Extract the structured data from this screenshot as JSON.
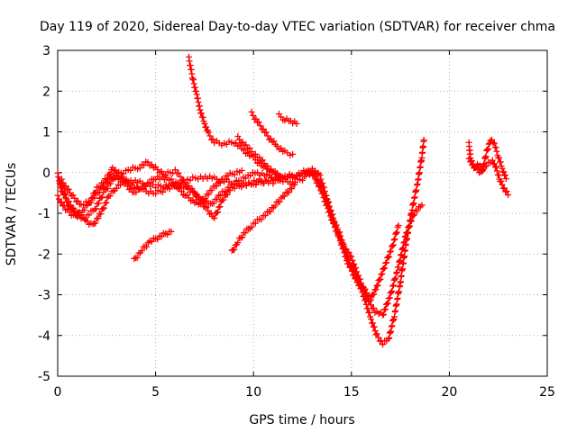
{
  "chart_data": {
    "type": "scatter",
    "title": "Day 119 of 2020, Sidereal Day-to-day VTEC variation (SDTVAR) for receiver chma",
    "xlabel": "GPS time / hours",
    "ylabel": "SDTVAR / TECUs",
    "xlim": [
      0,
      25
    ],
    "ylim": [
      -5,
      3
    ],
    "xticks": [
      0,
      5,
      10,
      15,
      20,
      25
    ],
    "yticks": [
      -5,
      -4,
      -3,
      -2,
      -1,
      0,
      1,
      2,
      3
    ],
    "grid": true,
    "legend": "none",
    "marker": "+",
    "color": "#ff0000",
    "traces": [
      {
        "points": [
          [
            0.0,
            -0.05
          ],
          [
            0.3,
            -0.5
          ],
          [
            0.6,
            -0.85
          ],
          [
            1.0,
            -1.05
          ],
          [
            1.5,
            -1.2
          ],
          [
            1.8,
            -1.3
          ],
          [
            2.2,
            -1.0
          ],
          [
            2.6,
            -0.6
          ],
          [
            3.0,
            -0.35
          ],
          [
            3.5,
            -0.2
          ],
          [
            4.2,
            -0.25
          ],
          [
            5.0,
            -0.35
          ],
          [
            5.8,
            -0.3
          ],
          [
            6.5,
            -0.2
          ],
          [
            7.3,
            -0.1
          ],
          [
            8.0,
            -0.15
          ],
          [
            9.0,
            -0.25
          ],
          [
            10.0,
            -0.3
          ],
          [
            11.0,
            -0.15
          ],
          [
            12.0,
            -0.1
          ],
          [
            12.6,
            -0.05
          ],
          [
            13.0,
            0.0
          ],
          [
            13.3,
            -0.2
          ],
          [
            13.7,
            -0.6
          ],
          [
            14.0,
            -1.1
          ],
          [
            14.4,
            -1.5
          ],
          [
            14.8,
            -2.1
          ],
          [
            15.2,
            -2.5
          ],
          [
            15.6,
            -3.0
          ],
          [
            16.0,
            -3.6
          ],
          [
            16.3,
            -4.0
          ],
          [
            16.6,
            -4.2
          ],
          [
            16.9,
            -4.1
          ],
          [
            17.2,
            -3.5
          ],
          [
            17.5,
            -2.7
          ],
          [
            17.8,
            -1.7
          ],
          [
            18.1,
            -0.9
          ],
          [
            18.4,
            -0.2
          ],
          [
            18.6,
            0.4
          ],
          [
            18.7,
            0.8
          ]
        ]
      },
      {
        "points": [
          [
            0.0,
            -0.6
          ],
          [
            0.4,
            -0.9
          ],
          [
            0.8,
            -1.05
          ],
          [
            1.2,
            -1.0
          ],
          [
            1.6,
            -0.75
          ],
          [
            2.0,
            -0.4
          ],
          [
            2.5,
            -0.15
          ],
          [
            2.8,
            0.1
          ],
          [
            3.2,
            -0.1
          ],
          [
            3.8,
            -0.3
          ],
          [
            4.4,
            -0.45
          ],
          [
            5.0,
            -0.5
          ],
          [
            5.6,
            -0.4
          ],
          [
            6.2,
            -0.3
          ],
          [
            7.0,
            -0.5
          ],
          [
            7.6,
            -0.9
          ],
          [
            8.0,
            -1.1
          ],
          [
            8.4,
            -0.7
          ],
          [
            8.8,
            -0.4
          ],
          [
            9.5,
            -0.3
          ],
          [
            10.3,
            -0.2
          ],
          [
            11.0,
            -0.25
          ],
          [
            11.6,
            -0.1
          ],
          [
            12.2,
            -0.05
          ],
          [
            12.8,
            0.05
          ],
          [
            13.1,
            -0.1
          ],
          [
            13.5,
            -0.5
          ],
          [
            13.8,
            -0.9
          ],
          [
            14.2,
            -1.4
          ],
          [
            14.6,
            -1.8
          ],
          [
            15.0,
            -2.1
          ],
          [
            15.4,
            -2.6
          ],
          [
            15.8,
            -3.1
          ],
          [
            16.2,
            -3.4
          ],
          [
            16.6,
            -3.5
          ],
          [
            17.0,
            -3.0
          ],
          [
            17.4,
            -2.3
          ],
          [
            17.8,
            -1.5
          ],
          [
            18.2,
            -1.0
          ],
          [
            18.6,
            -0.8
          ]
        ]
      },
      {
        "points": [
          [
            0.1,
            -0.3
          ],
          [
            0.5,
            -0.7
          ],
          [
            0.9,
            -0.95
          ],
          [
            1.4,
            -1.1
          ],
          [
            1.9,
            -0.9
          ],
          [
            2.4,
            -0.45
          ],
          [
            3.0,
            -0.05
          ],
          [
            3.6,
            0.05
          ],
          [
            4.2,
            0.15
          ],
          [
            4.6,
            0.25
          ],
          [
            5.0,
            0.1
          ],
          [
            5.5,
            -0.05
          ],
          [
            6.0,
            0.05
          ],
          [
            6.6,
            -0.3
          ],
          [
            7.2,
            -0.6
          ],
          [
            7.8,
            -0.8
          ],
          [
            8.3,
            -0.55
          ],
          [
            8.9,
            -0.3
          ],
          [
            9.6,
            -0.1
          ],
          [
            10.2,
            0.0
          ],
          [
            10.8,
            -0.1
          ],
          [
            11.5,
            -0.2
          ],
          [
            12.0,
            -0.25
          ],
          [
            12.5,
            -0.15
          ],
          [
            13.0,
            0.1
          ],
          [
            13.4,
            -0.1
          ],
          [
            13.8,
            -0.7
          ],
          [
            14.3,
            -1.5
          ],
          [
            14.8,
            -2.2
          ],
          [
            15.3,
            -2.7
          ],
          [
            15.7,
            -2.9
          ],
          [
            16.0,
            -3.1
          ],
          [
            16.3,
            -2.8
          ],
          [
            16.7,
            -2.3
          ],
          [
            17.1,
            -1.8
          ],
          [
            17.4,
            -1.3
          ]
        ]
      },
      {
        "points": [
          [
            0.2,
            -0.2
          ],
          [
            0.7,
            -0.55
          ],
          [
            1.2,
            -0.8
          ],
          [
            1.7,
            -0.7
          ],
          [
            2.3,
            -0.35
          ],
          [
            2.9,
            -0.05
          ],
          [
            3.4,
            -0.25
          ],
          [
            3.9,
            -0.5
          ],
          [
            4.5,
            -0.3
          ],
          [
            5.1,
            -0.1
          ],
          [
            5.8,
            -0.2
          ],
          [
            6.5,
            -0.55
          ],
          [
            7.2,
            -0.8
          ],
          [
            7.7,
            -0.5
          ],
          [
            8.2,
            -0.25
          ],
          [
            8.8,
            -0.05
          ],
          [
            9.4,
            0.05
          ]
        ]
      },
      {
        "points": [
          [
            6.7,
            2.8
          ],
          [
            6.9,
            2.3
          ],
          [
            7.1,
            1.9
          ],
          [
            7.3,
            1.5
          ],
          [
            7.5,
            1.2
          ],
          [
            7.7,
            0.95
          ],
          [
            8.0,
            0.75
          ],
          [
            8.5,
            0.7
          ],
          [
            9.0,
            0.75
          ],
          [
            9.5,
            0.55
          ],
          [
            10.0,
            0.35
          ],
          [
            10.5,
            0.15
          ],
          [
            11.0,
            0.0
          ],
          [
            11.4,
            -0.1
          ]
        ]
      },
      {
        "points": [
          [
            9.2,
            0.85
          ],
          [
            9.7,
            0.6
          ],
          [
            10.3,
            0.35
          ],
          [
            10.8,
            0.1
          ],
          [
            11.2,
            -0.05
          ]
        ]
      },
      {
        "points": [
          [
            9.9,
            1.45
          ],
          [
            10.2,
            1.25
          ],
          [
            10.5,
            1.05
          ],
          [
            10.8,
            0.85
          ],
          [
            11.2,
            0.65
          ],
          [
            11.6,
            0.5
          ],
          [
            12.0,
            0.45
          ]
        ]
      },
      {
        "points": [
          [
            11.3,
            1.4
          ],
          [
            11.6,
            1.3
          ],
          [
            11.9,
            1.25
          ],
          [
            12.2,
            1.2
          ]
        ]
      },
      {
        "points": [
          [
            3.9,
            -2.15
          ],
          [
            4.3,
            -1.9
          ],
          [
            4.7,
            -1.7
          ],
          [
            5.1,
            -1.6
          ],
          [
            5.5,
            -1.5
          ],
          [
            5.8,
            -1.45
          ]
        ]
      },
      {
        "points": [
          [
            8.9,
            -1.95
          ],
          [
            9.2,
            -1.7
          ],
          [
            9.5,
            -1.5
          ],
          [
            9.9,
            -1.3
          ],
          [
            10.3,
            -1.15
          ],
          [
            10.7,
            -1.0
          ],
          [
            11.1,
            -0.8
          ],
          [
            11.5,
            -0.6
          ],
          [
            11.8,
            -0.45
          ],
          [
            12.1,
            -0.3
          ]
        ]
      },
      {
        "points": [
          [
            21.0,
            0.7
          ],
          [
            21.1,
            0.3
          ],
          [
            21.3,
            0.1
          ],
          [
            21.5,
            0.2
          ],
          [
            21.7,
            0.05
          ],
          [
            21.9,
            0.5
          ],
          [
            22.1,
            0.8
          ],
          [
            22.3,
            0.7
          ],
          [
            22.5,
            0.4
          ],
          [
            22.7,
            0.1
          ],
          [
            22.9,
            -0.15
          ]
        ]
      },
      {
        "points": [
          [
            21.0,
            0.3
          ],
          [
            21.3,
            0.15
          ],
          [
            21.6,
            0.0
          ],
          [
            21.9,
            0.2
          ],
          [
            22.2,
            0.3
          ],
          [
            22.4,
            0.1
          ],
          [
            22.6,
            -0.2
          ],
          [
            22.8,
            -0.4
          ],
          [
            23.0,
            -0.55
          ]
        ]
      }
    ]
  }
}
